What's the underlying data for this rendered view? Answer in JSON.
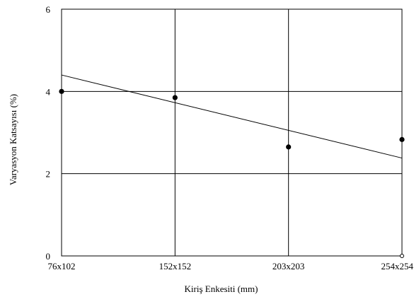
{
  "chart_data": {
    "type": "scatter",
    "title": "",
    "xlabel": "Kiriş Enkesiti (mm)",
    "ylabel": "Varyasyon Katsayısı (%)",
    "categories": [
      "76x102",
      "152x152",
      "203x203",
      "254x254"
    ],
    "x_positions": [
      1,
      2,
      3,
      4
    ],
    "ylim": [
      0,
      6
    ],
    "yticks": [
      0,
      2,
      4,
      6
    ],
    "ytick_labels": [
      "0",
      "2",
      "4",
      "6"
    ],
    "grid": true,
    "series": [
      {
        "type": "scatter",
        "points": [
          {
            "category": "76x102",
            "y": 4.0
          },
          {
            "category": "152x152",
            "y": 3.85
          },
          {
            "category": "203x203",
            "y": 2.65
          },
          {
            "category": "254x254",
            "y": 2.83
          }
        ]
      },
      {
        "type": "trendline",
        "y_start": 4.4,
        "y_end": 2.38
      }
    ],
    "colors": {
      "line": "#000000",
      "marker": "#000000",
      "grid": "#000000"
    }
  }
}
